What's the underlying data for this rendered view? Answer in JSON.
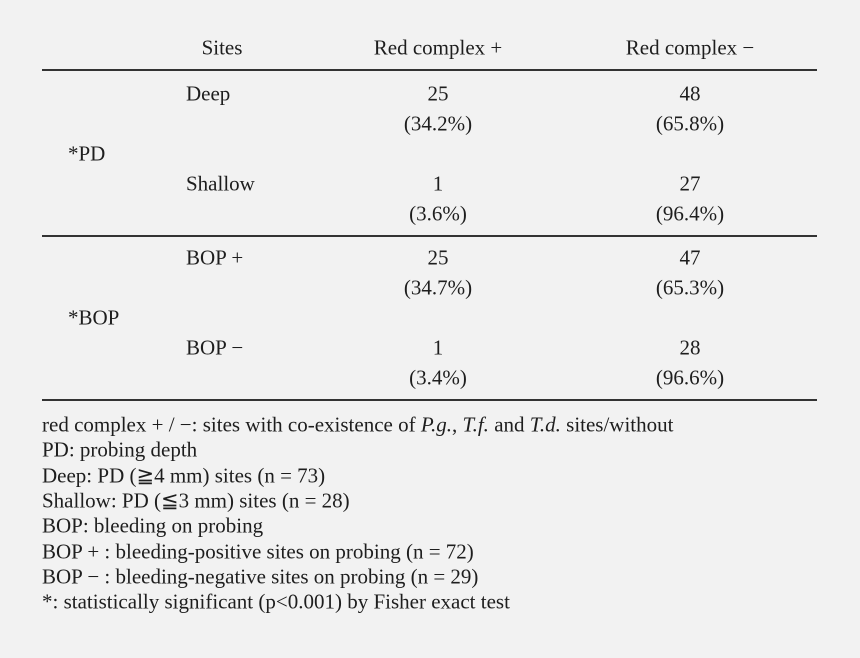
{
  "table": {
    "header": [
      "Sites",
      "Red complex +",
      "Red complex −"
    ],
    "groups": [
      {
        "label": "*PD",
        "rows": [
          {
            "site": "Deep",
            "plus": 25,
            "plus_pct": "(34.2%)",
            "minus": 48,
            "minus_pct": "(65.8%)"
          },
          {
            "site": "Shallow",
            "plus": 1,
            "plus_pct": "(3.6%)",
            "minus": 27,
            "minus_pct": "(96.4%)"
          }
        ]
      },
      {
        "label": "*BOP",
        "rows": [
          {
            "site": "BOP +",
            "plus": 25,
            "plus_pct": "(34.7%)",
            "minus": 47,
            "minus_pct": "(65.3%)"
          },
          {
            "site": "BOP −",
            "plus": 1,
            "plus_pct": "(3.4%)",
            "minus": 28,
            "minus_pct": "(96.6%)"
          }
        ]
      }
    ]
  },
  "notes": [
    [
      "red complex + / −: sites with co-existence of ",
      "P.g.",
      ", ",
      "T.f.",
      " and ",
      "T.d.",
      " sites/without"
    ],
    "PD: probing depth",
    "Deep: PD (≧4 mm) sites (n = 73)",
    "Shallow: PD (≦3 mm) sites (n = 28)",
    "BOP: bleeding on probing",
    "BOP + : bleeding-positive sites on probing (n = 72)",
    "BOP − : bleeding-negative sites on probing (n = 29)",
    "*: statistically significant (p<0.001) by Fisher exact test"
  ]
}
